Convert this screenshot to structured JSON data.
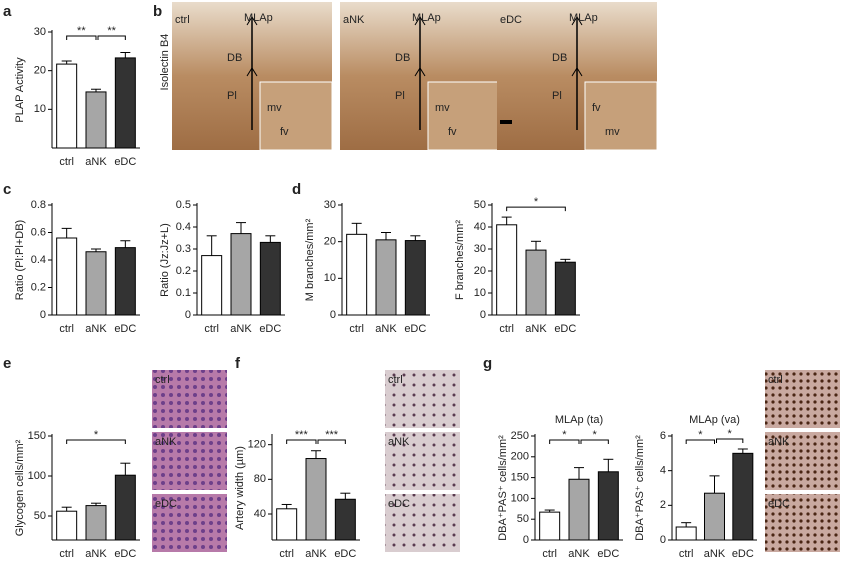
{
  "panel_letters": [
    "a",
    "b",
    "c",
    "d",
    "e",
    "f",
    "g"
  ],
  "panel_b": {
    "stain": "Isolectin B4",
    "images": [
      {
        "label": "ctrl",
        "texts": [
          "MLAp",
          "DB",
          "Pl",
          "mv",
          "fv"
        ]
      },
      {
        "label": "aNK",
        "texts": [
          "MLAp",
          "DB",
          "Pl",
          "mv",
          "fv"
        ]
      },
      {
        "label": "eDC",
        "texts": [
          "MLAp",
          "DB",
          "Pl",
          "fv",
          "mv"
        ]
      }
    ]
  },
  "side_images": [
    [
      "ctrl",
      "aNK",
      "eDC"
    ],
    [
      "ctrl",
      "aNK",
      "eDC"
    ],
    [
      "ctrl",
      "aNK",
      "eDC"
    ]
  ],
  "chart_data": [
    {
      "type": "bar",
      "ylabel": "PLAP Activity",
      "categories": [
        "ctrl",
        "aNK",
        "eDC"
      ],
      "values": [
        21.7,
        14.5,
        23.3
      ],
      "errors": [
        0.8,
        0.7,
        1.4
      ],
      "colors": [
        "#ffffff",
        "#a6a6a6",
        "#333333"
      ],
      "ylim": [
        0,
        30
      ],
      "yticks": [
        10,
        20,
        30
      ],
      "significance": [
        {
          "label": "**",
          "from": 0,
          "to": 1
        },
        {
          "label": "**",
          "from": 1,
          "to": 2
        }
      ]
    },
    {
      "type": "bar",
      "ylabel": "Ratio (Pl:Pl+DB)",
      "categories": [
        "ctrl",
        "aNK",
        "eDC"
      ],
      "values": [
        0.56,
        0.46,
        0.49
      ],
      "errors": [
        0.07,
        0.02,
        0.05
      ],
      "colors": [
        "#ffffff",
        "#a6a6a6",
        "#333333"
      ],
      "ylim": [
        0,
        0.8
      ],
      "yticks": [
        0,
        0.2,
        0.4,
        0.6,
        0.8
      ],
      "significance": []
    },
    {
      "type": "bar",
      "ylabel": "Ratio (Jz:Jz+L)",
      "categories": [
        "ctrl",
        "aNK",
        "eDC"
      ],
      "values": [
        0.27,
        0.37,
        0.33
      ],
      "errors": [
        0.09,
        0.05,
        0.03
      ],
      "colors": [
        "#ffffff",
        "#a6a6a6",
        "#333333"
      ],
      "ylim": [
        0,
        0.5
      ],
      "yticks": [
        0,
        0.1,
        0.2,
        0.3,
        0.4,
        0.5
      ],
      "significance": []
    },
    {
      "type": "bar",
      "ylabel": "M branches/mm²",
      "categories": [
        "ctrl",
        "aNK",
        "eDC"
      ],
      "values": [
        22,
        20.5,
        20.3
      ],
      "errors": [
        3,
        2,
        1.3
      ],
      "colors": [
        "#ffffff",
        "#a6a6a6",
        "#333333"
      ],
      "ylim": [
        0,
        30
      ],
      "yticks": [
        0,
        10,
        20,
        30
      ],
      "significance": []
    },
    {
      "type": "bar",
      "ylabel": "F branches/mm²",
      "categories": [
        "ctrl",
        "aNK",
        "eDC"
      ],
      "values": [
        41,
        29.5,
        24
      ],
      "errors": [
        3.5,
        4,
        1.3
      ],
      "colors": [
        "#ffffff",
        "#a6a6a6",
        "#333333"
      ],
      "ylim": [
        0,
        50
      ],
      "yticks": [
        0,
        10,
        20,
        30,
        40,
        50
      ],
      "significance": [
        {
          "label": "*",
          "from": 0,
          "to": 2
        }
      ]
    },
    {
      "type": "bar",
      "ylabel": "Glycogen cells/mm²",
      "categories": [
        "ctrl",
        "aNK",
        "eDC"
      ],
      "values": [
        56,
        63,
        101
      ],
      "errors": [
        5,
        3,
        15
      ],
      "colors": [
        "#ffffff",
        "#a6a6a6",
        "#333333"
      ],
      "ylim": [
        20,
        150
      ],
      "yticks": [
        50,
        100,
        150
      ],
      "significance": [
        {
          "label": "*",
          "from": 0,
          "to": 2
        }
      ]
    },
    {
      "type": "bar",
      "ylabel": "Artery width (µm)",
      "categories": [
        "ctrl",
        "aNK",
        "eDC"
      ],
      "values": [
        46,
        104,
        57
      ],
      "errors": [
        5,
        9,
        7
      ],
      "colors": [
        "#ffffff",
        "#a6a6a6",
        "#333333"
      ],
      "ylim": [
        10,
        130
      ],
      "yticks": [
        40,
        80,
        120
      ],
      "significance": [
        {
          "label": "***",
          "from": 0,
          "to": 1
        },
        {
          "label": "***",
          "from": 1,
          "to": 2
        }
      ]
    },
    {
      "type": "bar",
      "title": "MLAp (ta)",
      "ylabel": "DBA⁺PAS⁺ cells/mm²",
      "categories": [
        "ctrl",
        "aNK",
        "eDC"
      ],
      "values": [
        67,
        146,
        164
      ],
      "errors": [
        5,
        28,
        30
      ],
      "colors": [
        "#ffffff",
        "#a6a6a6",
        "#333333"
      ],
      "ylim": [
        0,
        250
      ],
      "yticks": [
        0,
        50,
        100,
        150,
        200,
        250
      ],
      "significance": [
        {
          "label": "*",
          "from": 0,
          "to": 1
        },
        {
          "label": "*",
          "from": 1,
          "to": 2
        }
      ]
    },
    {
      "type": "bar",
      "title": "MLAp (va)",
      "ylabel": "DBA⁺PAS⁺ cells/mm²",
      "categories": [
        "ctrl",
        "aNK",
        "eDC"
      ],
      "values": [
        0.75,
        2.7,
        5
      ],
      "errors": [
        0.25,
        1,
        0.25
      ],
      "colors": [
        "#ffffff",
        "#a6a6a6",
        "#333333"
      ],
      "ylim": [
        0,
        6
      ],
      "yticks": [
        0,
        2,
        4,
        6
      ],
      "significance": [
        {
          "label": "*",
          "from": 0,
          "to": 1
        },
        {
          "label": "*",
          "from": 1,
          "to": 2
        }
      ]
    }
  ]
}
